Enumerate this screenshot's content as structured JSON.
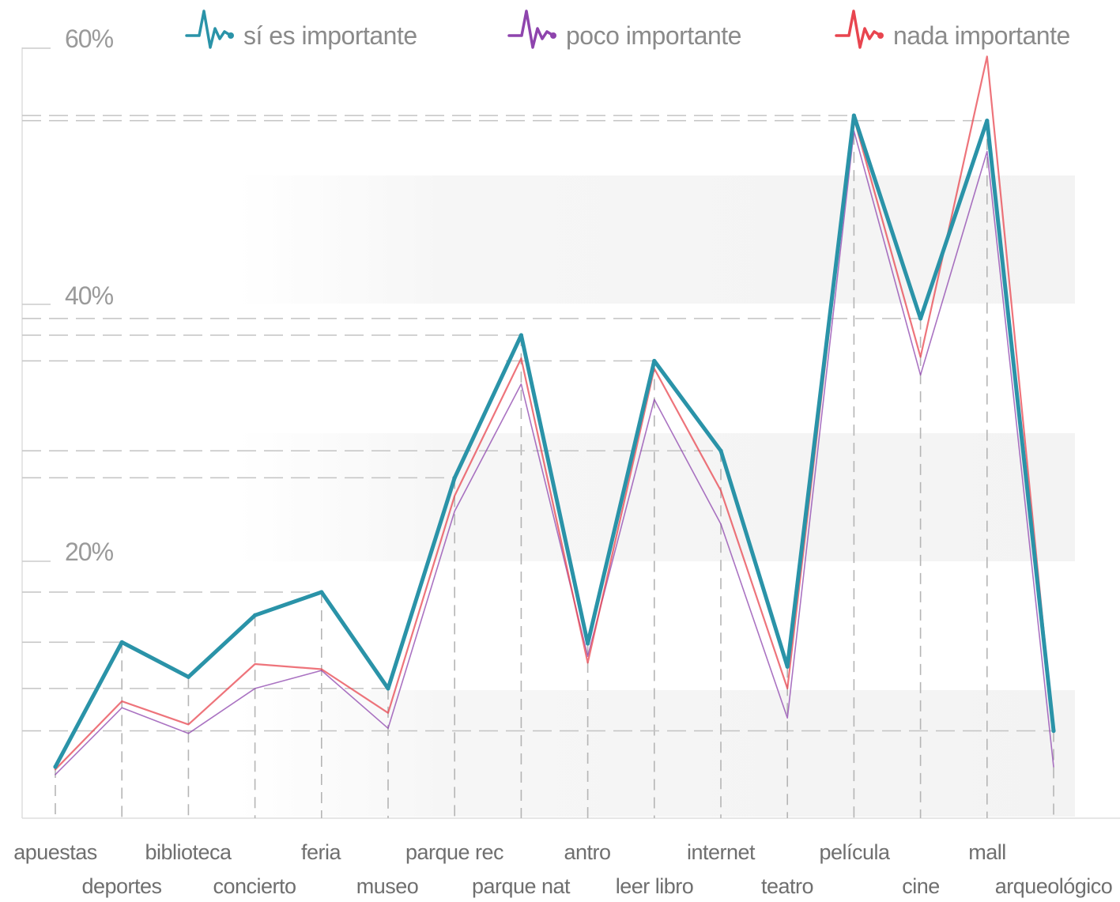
{
  "chart_data": {
    "type": "line",
    "y_ticks": [
      "20%",
      "40%",
      "60%"
    ],
    "y_tick_values": [
      20,
      40,
      60
    ],
    "ylim": [
      0,
      60
    ],
    "categories": [
      "apuestas",
      "deportes",
      "biblioteca",
      "concierto",
      "feria",
      "museo",
      "parque rec",
      "parque nat",
      "antro",
      "leer libro",
      "internet",
      "teatro",
      "película",
      "cine",
      "mall",
      "arqueológico"
    ],
    "series": [
      {
        "name": "sí es importante",
        "color": "#2a93a8",
        "values": [
          4.0,
          13.7,
          11.0,
          15.8,
          17.6,
          10.1,
          26.5,
          37.6,
          13.6,
          35.6,
          28.6,
          11.8,
          54.7,
          38.9,
          54.3,
          6.8
        ]
      },
      {
        "name": "poco importante",
        "color": "#8e44ad",
        "values": [
          3.4,
          8.6,
          6.6,
          10.1,
          11.5,
          7.0,
          23.9,
          33.8,
          12.6,
          32.6,
          22.9,
          7.8,
          53.5,
          34.5,
          51.9,
          4.0
        ]
      },
      {
        "name": "nada importante",
        "color": "#e8454f",
        "values": [
          3.8,
          9.1,
          7.3,
          12.0,
          11.6,
          8.2,
          25.1,
          35.8,
          12.1,
          35.0,
          25.5,
          10.1,
          54.5,
          35.9,
          59.3,
          6.8
        ]
      }
    ],
    "grid": true,
    "legend_position": "top"
  }
}
